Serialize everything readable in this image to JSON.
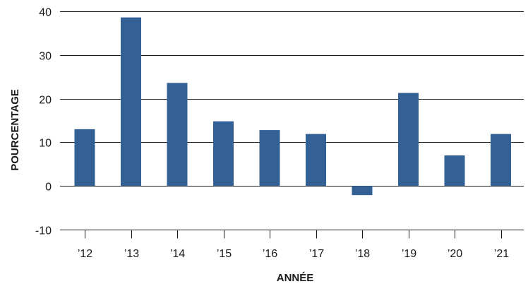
{
  "chart_data": {
    "type": "bar",
    "title": "",
    "xlabel": "ANNÉE",
    "ylabel": "POURCENTAGE",
    "categories": [
      "’12",
      "’13",
      "’14",
      "’15",
      "’16",
      "’17",
      "’18",
      "’19",
      "’20",
      "’21"
    ],
    "values": [
      13.0,
      38.6,
      23.6,
      14.8,
      12.8,
      11.9,
      -2.1,
      21.3,
      7.0,
      11.9
    ],
    "ylim": [
      -10,
      40
    ],
    "yticks": [
      "-10",
      "0",
      "10",
      "20",
      "30",
      "40"
    ],
    "grid": true,
    "legend": "none",
    "bar_color": "#336196"
  }
}
